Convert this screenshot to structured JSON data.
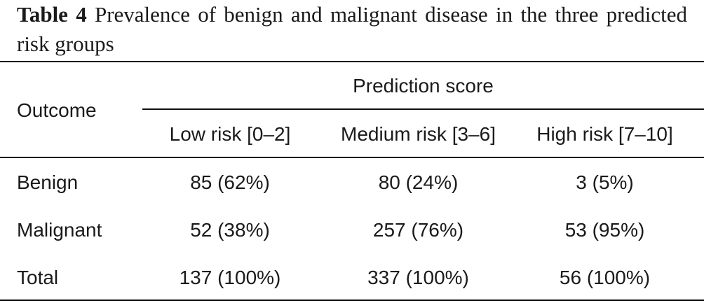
{
  "caption": {
    "label": "Table 4",
    "text": " Prevalence of benign and malignant disease in the three predicted risk groups"
  },
  "table": {
    "stub_header": "Outcome",
    "spanner": "Prediction score",
    "columns": [
      "Low risk [0–2]",
      "Medium risk [3–6]",
      "High risk [7–10]"
    ],
    "rows": [
      {
        "label": "Benign",
        "values": [
          "85 (62%)",
          "80 (24%)",
          "3 (5%)"
        ]
      },
      {
        "label": "Malignant",
        "values": [
          "52 (38%)",
          "257 (76%)",
          "53 (95%)"
        ]
      },
      {
        "label": "Total",
        "values": [
          "137 (100%)",
          "337 (100%)",
          "56 (100%)"
        ]
      }
    ]
  }
}
